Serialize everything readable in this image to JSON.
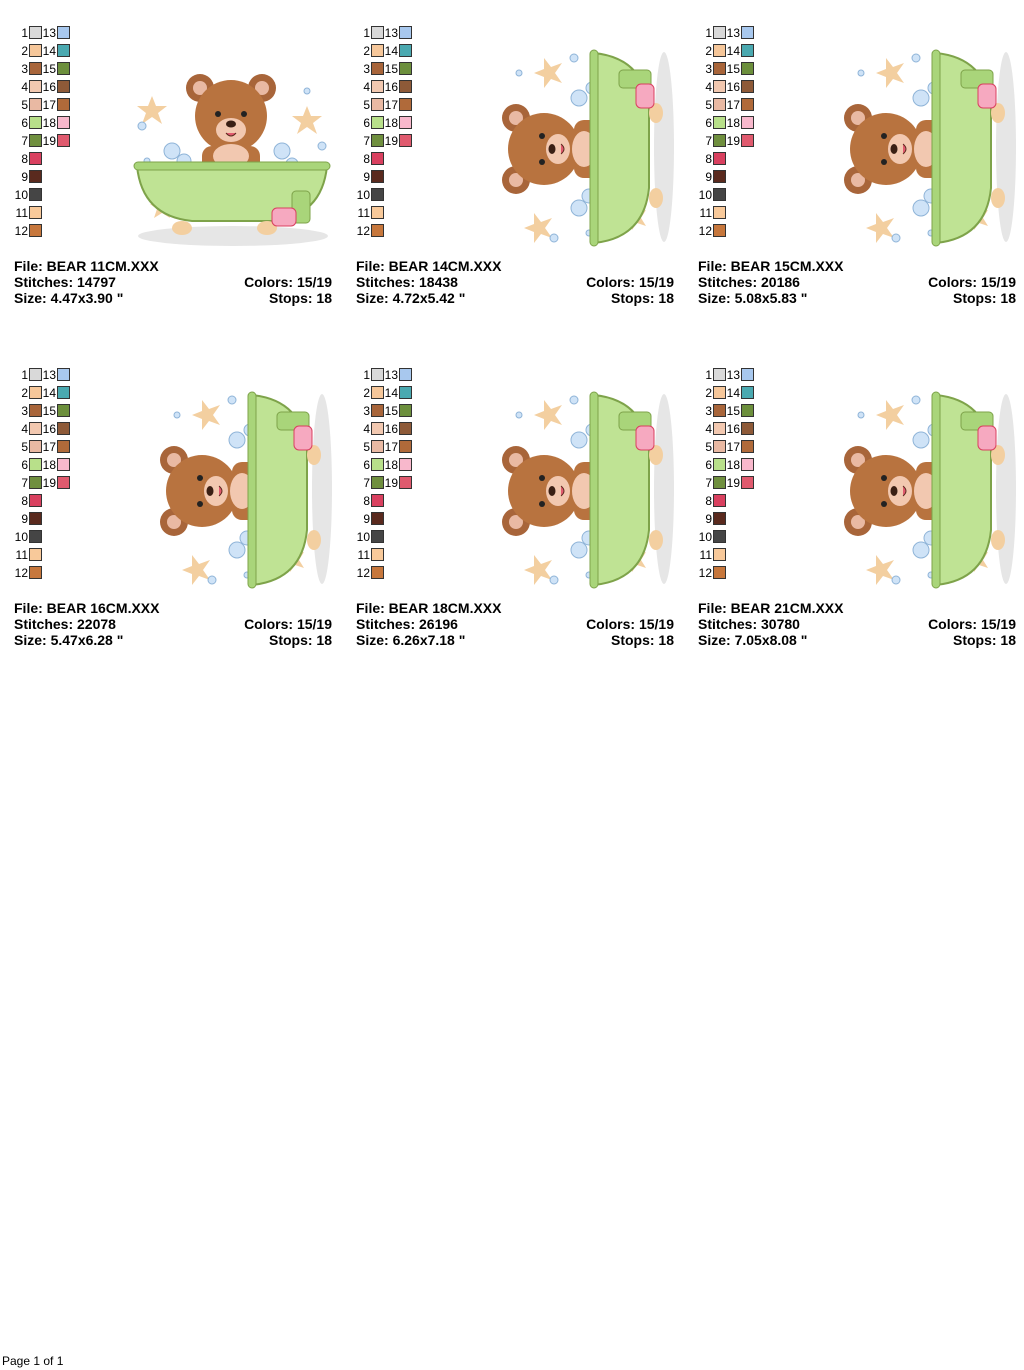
{
  "palette": {
    "left": [
      {
        "n": "1",
        "color": "#d9d9d9"
      },
      {
        "n": "2",
        "color": "#f6c79a"
      },
      {
        "n": "3",
        "color": "#a8653a"
      },
      {
        "n": "4",
        "color": "#f2c8b0"
      },
      {
        "n": "5",
        "color": "#e9b9a3"
      },
      {
        "n": "6",
        "color": "#b8e08a"
      },
      {
        "n": "7",
        "color": "#6f8f3e"
      },
      {
        "n": "8",
        "color": "#d9405f"
      },
      {
        "n": "9",
        "color": "#5a2a1e"
      },
      {
        "n": "10",
        "color": "#454545"
      },
      {
        "n": "11",
        "color": "#f8c99a"
      },
      {
        "n": "12",
        "color": "#c7773c"
      }
    ],
    "right": [
      {
        "n": "13",
        "color": "#a8c8ee"
      },
      {
        "n": "14",
        "color": "#4aa9b0"
      },
      {
        "n": "15",
        "color": "#6c8f3c"
      },
      {
        "n": "16",
        "color": "#8e5a38"
      },
      {
        "n": "17",
        "color": "#b06a3a"
      },
      {
        "n": "18",
        "color": "#f8b8cc"
      },
      {
        "n": "19",
        "color": "#e05a6e"
      }
    ]
  },
  "designs": [
    {
      "file": "File: BEAR 11CM.XXX",
      "stitches": "Stitches: 14797",
      "size": "Size: 4.47x3.90 \"",
      "colors": "Colors: 15/19",
      "stops": "Stops: 18",
      "art": "bear-in-tub-upright"
    },
    {
      "file": "File: BEAR 14CM.XXX",
      "stitches": "Stitches: 18438",
      "size": "Size: 4.72x5.42 \"",
      "colors": "Colors: 15/19",
      "stops": "Stops: 18",
      "art": "bear-in-tub-rotated"
    },
    {
      "file": "File: BEAR 15CM.XXX",
      "stitches": "Stitches: 20186",
      "size": "Size: 5.08x5.83 \"",
      "colors": "Colors: 15/19",
      "stops": "Stops: 18",
      "art": "bear-in-tub-rotated"
    },
    {
      "file": "File: BEAR 16CM.XXX",
      "stitches": "Stitches: 22078",
      "size": "Size: 5.47x6.28 \"",
      "colors": "Colors: 15/19",
      "stops": "Stops: 18",
      "art": "bear-in-tub-rotated"
    },
    {
      "file": "File: BEAR 18CM.XXX",
      "stitches": "Stitches: 26196",
      "size": "Size: 6.26x7.18 \"",
      "colors": "Colors: 15/19",
      "stops": "Stops: 18",
      "art": "bear-in-tub-rotated"
    },
    {
      "file": "File: BEAR 21CM.XXX",
      "stitches": "Stitches: 30780",
      "size": "Size: 7.05x8.08 \"",
      "colors": "Colors: 15/19",
      "stops": "Stops: 18",
      "art": "bear-in-tub-rotated"
    }
  ],
  "footer": {
    "page": "Page 1 of 1"
  }
}
